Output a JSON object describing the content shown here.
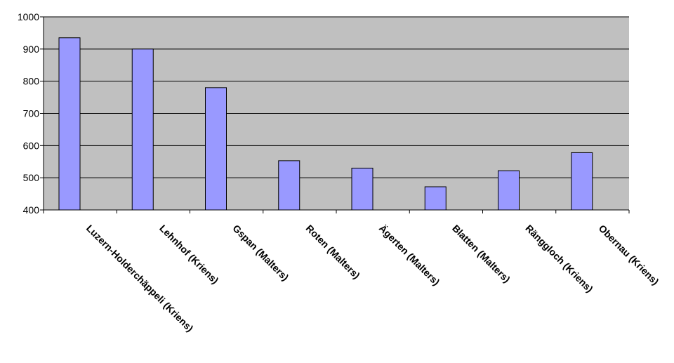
{
  "chart_data": {
    "type": "bar",
    "title": "",
    "xlabel": "",
    "ylabel": "",
    "categories": [
      "Luzern-Holderchäppeli (Kriens)",
      "Lehnhof (Kriens)",
      "Gspan (Malters)",
      "Roten (Malters)",
      "Ägerten (Malters)",
      "Blatten (Malters)",
      "Ränggloch (Kriens)",
      "Obernau (Kriens)"
    ],
    "values": [
      935,
      900,
      780,
      553,
      530,
      472,
      522,
      578
    ],
    "ylim": [
      400,
      1000
    ],
    "yticks": [
      400,
      500,
      600,
      700,
      800,
      900,
      1000
    ],
    "grid": true,
    "legend": "none",
    "colors": {
      "bar_fill": "#9999ff",
      "bar_stroke": "#000000",
      "plot_background": "#c0c0c0",
      "gridline": "#000000"
    }
  }
}
